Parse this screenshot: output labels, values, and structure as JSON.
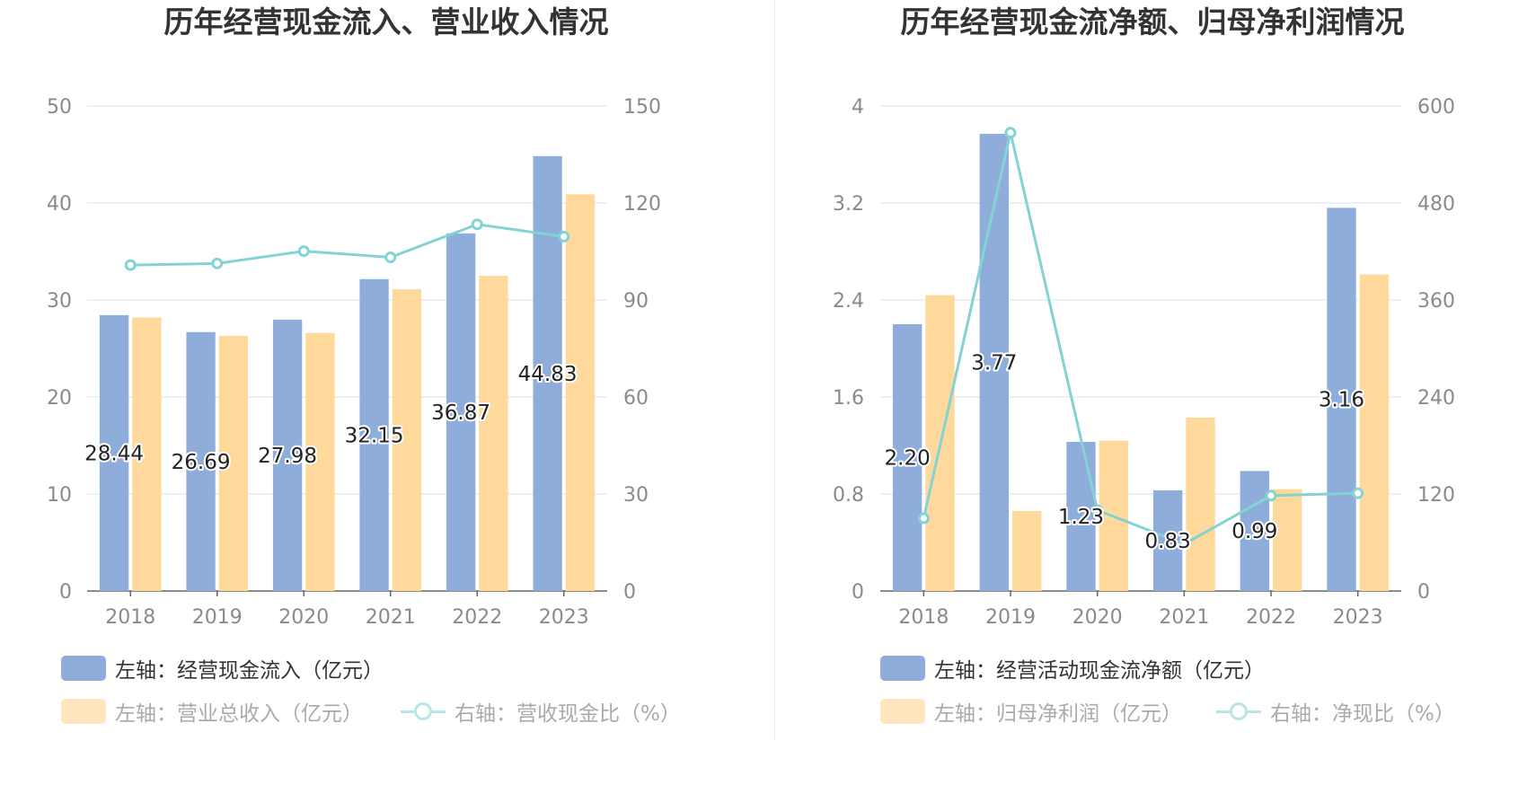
{
  "colors": {
    "bar1": "#8eaddb",
    "bar2": "#ffd99b",
    "line": "#83d3d5",
    "grid": "#dde2ee",
    "axis": "#666666"
  },
  "chart_data": [
    {
      "type": "bar",
      "title": "历年经营现金流入、营业收入情况",
      "categories": [
        "2018",
        "2019",
        "2020",
        "2021",
        "2022",
        "2023"
      ],
      "left_axis": {
        "ticks": [
          "0",
          "10",
          "20",
          "30",
          "40",
          "50"
        ],
        "ylim": [
          0,
          50
        ]
      },
      "right_axis": {
        "ticks": [
          "0",
          "30",
          "60",
          "90",
          "120",
          "150"
        ],
        "ylim": [
          0,
          150
        ]
      },
      "series": [
        {
          "name": "左轴：经营现金流入（亿元）",
          "type": "bar",
          "axis": "left",
          "values": [
            28.44,
            26.69,
            27.98,
            32.15,
            36.87,
            44.83
          ],
          "labels": [
            "28.44",
            "26.69",
            "27.98",
            "32.15",
            "36.87",
            "44.83"
          ]
        },
        {
          "name": "左轴：营业总收入（亿元）",
          "type": "bar",
          "axis": "left",
          "values": [
            28.2,
            26.3,
            26.6,
            31.1,
            32.5,
            40.9
          ]
        },
        {
          "name": "右轴：营收现金比（%）",
          "type": "line",
          "axis": "right",
          "values": [
            100.8,
            101.3,
            105.1,
            103.2,
            113.4,
            109.6
          ]
        }
      ],
      "legend": {
        "item1": "左轴：经营现金流入（亿元）",
        "item2": "左轴：营业总收入（亿元）",
        "item3": "右轴：营收现金比（%）"
      }
    },
    {
      "type": "bar",
      "title": "历年经营现金流净额、归母净利润情况",
      "categories": [
        "2018",
        "2019",
        "2020",
        "2021",
        "2022",
        "2023"
      ],
      "left_axis": {
        "ticks": [
          "0",
          "0.8",
          "1.6",
          "2.4",
          "3.2",
          "4"
        ],
        "ylim": [
          0,
          4
        ]
      },
      "right_axis": {
        "ticks": [
          "0",
          "120",
          "240",
          "360",
          "480",
          "600"
        ],
        "ylim": [
          0,
          600
        ]
      },
      "series": [
        {
          "name": "左轴：经营活动现金流净额（亿元）",
          "type": "bar",
          "axis": "left",
          "values": [
            2.2,
            3.77,
            1.23,
            0.83,
            0.99,
            3.16
          ],
          "labels": [
            "2.20",
            "3.77",
            "1.23",
            "0.83",
            "0.99",
            "3.16"
          ]
        },
        {
          "name": "左轴：归母净利润（亿元）",
          "type": "bar",
          "axis": "left",
          "values": [
            2.44,
            0.66,
            1.24,
            1.43,
            0.84,
            2.61
          ]
        },
        {
          "name": "右轴：净现比（%）",
          "type": "line",
          "axis": "right",
          "values": [
            90,
            567,
            100,
            58,
            118,
            121
          ]
        }
      ],
      "legend": {
        "item1": "左轴：经营活动现金流净额（亿元）",
        "item2": "左轴：归母净利润（亿元）",
        "item3": "右轴：净现比（%）"
      }
    }
  ]
}
